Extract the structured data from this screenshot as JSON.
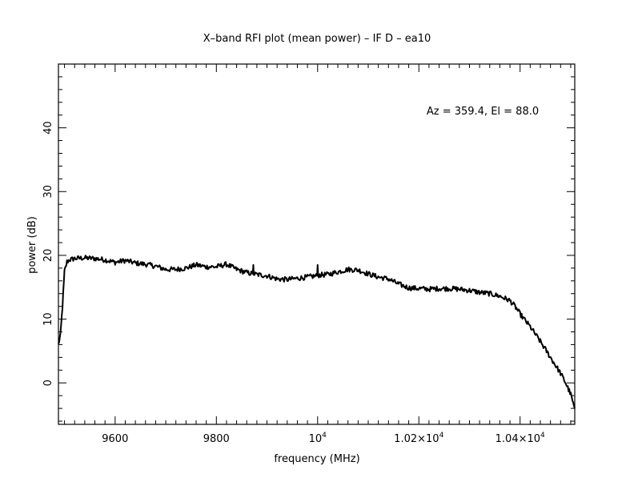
{
  "chart_data": {
    "type": "line",
    "title": "X–band RFI plot (mean power) – IF D – ea10",
    "xlabel": "frequency (MHz)",
    "ylabel": "power (dB)",
    "annotation": "Az = 359.4, El = 88.0",
    "xlim": [
      9488,
      10508
    ],
    "ylim": [
      -6.5,
      50
    ],
    "grid": false,
    "x_ticks": [
      {
        "value": 9600,
        "label": "9600"
      },
      {
        "value": 9800,
        "label": "9800"
      },
      {
        "value": 10000,
        "label": "10",
        "exp": "4"
      },
      {
        "value": 10200,
        "label": "1.02×10",
        "exp": "4"
      },
      {
        "value": 10400,
        "label": "1.04×10",
        "exp": "4"
      }
    ],
    "y_ticks": [
      0,
      10,
      20,
      30,
      40
    ],
    "series": [
      {
        "x": [
          9488,
          9492,
          9496,
          9500,
          9505,
          9510,
          9520,
          9540,
          9560,
          9580,
          9600,
          9620,
          9640,
          9660,
          9680,
          9700,
          9720,
          9740,
          9760,
          9780,
          9800,
          9820,
          9840,
          9860,
          9872,
          9873,
          9874,
          9880,
          9900,
          9920,
          9940,
          9960,
          9980,
          9999,
          10000,
          10001,
          10020,
          10040,
          10060,
          10080,
          10100,
          10120,
          10140,
          10160,
          10180,
          10200,
          10220,
          10240,
          10260,
          10280,
          10300,
          10320,
          10340,
          10360,
          10380,
          10390,
          10400,
          10420,
          10440,
          10460,
          10480,
          10490,
          10500,
          10505,
          10508
        ],
        "y": [
          6.0,
          7.5,
          12.0,
          17.5,
          19.0,
          19.3,
          19.5,
          19.6,
          19.5,
          19.3,
          18.9,
          19.2,
          18.8,
          18.6,
          18.3,
          17.8,
          17.8,
          18.0,
          18.5,
          18.2,
          18.2,
          18.6,
          17.8,
          17.3,
          17.1,
          18.5,
          17.1,
          17.0,
          16.8,
          16.3,
          16.2,
          16.4,
          16.6,
          16.8,
          18.5,
          16.9,
          17.0,
          17.4,
          17.8,
          17.7,
          17.1,
          16.6,
          16.3,
          15.5,
          14.9,
          14.8,
          14.7,
          14.8,
          14.8,
          14.7,
          14.5,
          14.2,
          14.0,
          13.6,
          12.9,
          12.0,
          10.8,
          8.8,
          6.5,
          4.0,
          1.5,
          0.0,
          -1.8,
          -3.3,
          -4.0
        ]
      }
    ]
  }
}
